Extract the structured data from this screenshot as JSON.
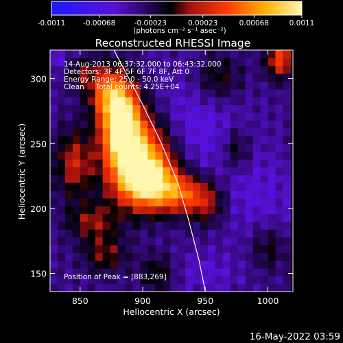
{
  "chart_data": {
    "type": "heatmap",
    "title": "Reconstructed RHESSI Image",
    "xlabel": "Heliocentric X (arcsec)",
    "ylabel": "Heliocentric Y (arcsec)",
    "xlim": [
      826,
      1020
    ],
    "ylim": [
      136,
      322
    ],
    "x_ticks": [
      850,
      900,
      950,
      1000
    ],
    "y_ticks": [
      150,
      200,
      250,
      300
    ],
    "colorbar": {
      "range": [
        -0.0011,
        0.0011
      ],
      "tick_values": [
        -0.0011,
        -0.00068,
        -0.00023,
        0.00023,
        0.00068,
        0.0011
      ],
      "tick_labels": [
        "-0.0011",
        "-0.00068",
        "-0.00023",
        "0.00023",
        "0.00068",
        "0.0011"
      ],
      "unit_label": "(photons cm⁻² s⁻¹ asec⁻²)",
      "colors": [
        "#1a1aff",
        "#5a10d8",
        "#000000",
        "#a01010",
        "#ff3a00",
        "#ffb000",
        "#fff6b0"
      ]
    },
    "annotations": {
      "time_range": "14-Aug-2013 06:37:32.000 to 06:43:32.000",
      "detectors": "Detectors: 3F 4F 5F 6F 7F 8F, Att 0",
      "energy": "Energy Range: 25.0 - 50.0 keV",
      "method": "Clean     Total counts: 4.25E+04",
      "peak": "Position of Peak = [883,269]"
    },
    "peak_position": [
      883,
      269
    ],
    "limb_curve": [
      [
        877,
        322
      ],
      [
        900,
        280
      ],
      [
        915,
        250
      ],
      [
        928,
        220
      ],
      [
        937,
        190
      ],
      [
        945,
        160
      ],
      [
        950,
        136
      ]
    ],
    "intensity_grid": {
      "x_start": 826,
      "y_start": 136,
      "step": 6,
      "note_units": "photons cm^-2 s^-1 asec^-2 (approximate)",
      "cols": 32,
      "rows": 31
    }
  },
  "footer": {
    "timestamp": "16-May-2022 03:59"
  }
}
